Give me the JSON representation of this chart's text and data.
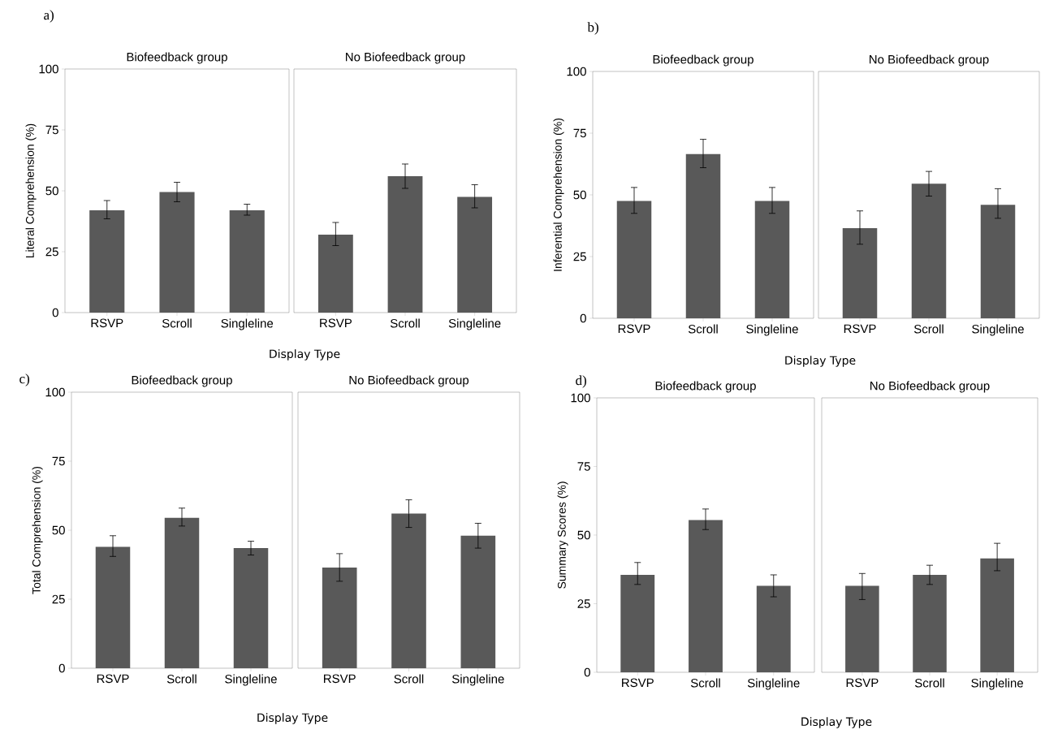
{
  "chart_data": [
    {
      "type": "bar",
      "title": "Biofeedback group",
      "categories": [
        "RSVP",
        "Scroll",
        "Singleline"
      ],
      "values": [
        42,
        49.5,
        42
      ],
      "errors": [
        [
          38.5,
          46
        ],
        [
          45.5,
          53.5
        ],
        [
          40,
          44.5
        ]
      ],
      "color": "#595959",
      "ylim": [
        0,
        100
      ],
      "yticks": [
        0,
        25,
        50,
        75,
        100
      ],
      "ylabel": "Literal Comprehension (%)",
      "xlabel": "Display Type",
      "annotations": [
        "a)"
      ]
    },
    {
      "type": "bar",
      "title": "No Biofeedback group",
      "categories": [
        "RSVP",
        "Scroll",
        "Singleline"
      ],
      "values": [
        32,
        56,
        47.5
      ],
      "errors": [
        [
          27.5,
          37
        ],
        [
          51,
          61
        ],
        [
          43,
          52.5
        ]
      ],
      "color": "#595959",
      "ylim": [
        0,
        100
      ],
      "yticks": [
        0,
        25,
        50,
        75,
        100
      ],
      "tick_labels": "x"
    },
    {
      "type": "bar",
      "title": "Biofeedback group",
      "categories": [
        "RSVP",
        "Scroll",
        "Singleline"
      ],
      "values": [
        47.5,
        66.5,
        47.5
      ],
      "errors": [
        [
          42.5,
          53
        ],
        [
          61,
          72.5
        ],
        [
          42.5,
          53
        ]
      ],
      "color": "#595959",
      "ylim": [
        0,
        100
      ],
      "yticks": [
        0,
        25,
        50,
        75,
        100
      ],
      "ylabel": "Inferential Comprehension (%)",
      "xlabel": "Display Type",
      "annotations": [
        "b)"
      ]
    },
    {
      "type": "bar",
      "title": "No Biofeedback group",
      "categories": [
        "RSVP",
        "Scroll",
        "Singleline"
      ],
      "values": [
        36.5,
        54.5,
        46
      ],
      "errors": [
        [
          30,
          43.5
        ],
        [
          49.5,
          59.5
        ],
        [
          40.5,
          52.5
        ]
      ],
      "color": "#595959",
      "ylim": [
        0,
        100
      ],
      "yticks": [
        0,
        25,
        50,
        75,
        100
      ],
      "tick_labels": "x"
    },
    {
      "type": "bar",
      "title": "Biofeedback group",
      "categories": [
        "RSVP",
        "Scroll",
        "Singleline"
      ],
      "values": [
        44,
        54.5,
        43.5
      ],
      "errors": [
        [
          40.5,
          48
        ],
        [
          51.5,
          58
        ],
        [
          41,
          46
        ]
      ],
      "color": "#595959",
      "ylim": [
        0,
        100
      ],
      "yticks": [
        0,
        25,
        50,
        75,
        100
      ],
      "ylabel": "Total Comprehension (%)",
      "xlabel": "Display Type",
      "annotations": [
        "c)"
      ]
    },
    {
      "type": "bar",
      "title": "No Biofeedback group",
      "categories": [
        "RSVP",
        "Scroll",
        "Singleline"
      ],
      "values": [
        36.5,
        56,
        48
      ],
      "errors": [
        [
          31.5,
          41.5
        ],
        [
          51,
          61
        ],
        [
          43.5,
          52.5
        ]
      ],
      "color": "#595959",
      "ylim": [
        0,
        100
      ],
      "yticks": [
        0,
        25,
        50,
        75,
        100
      ],
      "tick_labels": "x"
    },
    {
      "type": "bar",
      "title": "Biofeedback group",
      "categories": [
        "RSVP",
        "Scroll",
        "Singleline"
      ],
      "values": [
        35.5,
        55.5,
        31.5
      ],
      "errors": [
        [
          32,
          40
        ],
        [
          52,
          59.5
        ],
        [
          27.5,
          35.5
        ]
      ],
      "color": "#595959",
      "ylim": [
        0,
        100
      ],
      "yticks": [
        0,
        25,
        50,
        75,
        100
      ],
      "ylabel": "Summary Scores (%)",
      "xlabel": "Display Type",
      "annotations": [
        "d)"
      ]
    },
    {
      "type": "bar",
      "title": "No Biofeedback group",
      "categories": [
        "RSVP",
        "Scroll",
        "Singleline"
      ],
      "values": [
        31.5,
        35.5,
        41.5
      ],
      "errors": [
        [
          26.5,
          36
        ],
        [
          32,
          39
        ],
        [
          37,
          47
        ]
      ],
      "color": "#595959",
      "ylim": [
        0,
        100
      ],
      "yticks": [
        0,
        25,
        50,
        75,
        100
      ],
      "tick_labels": "x"
    }
  ]
}
